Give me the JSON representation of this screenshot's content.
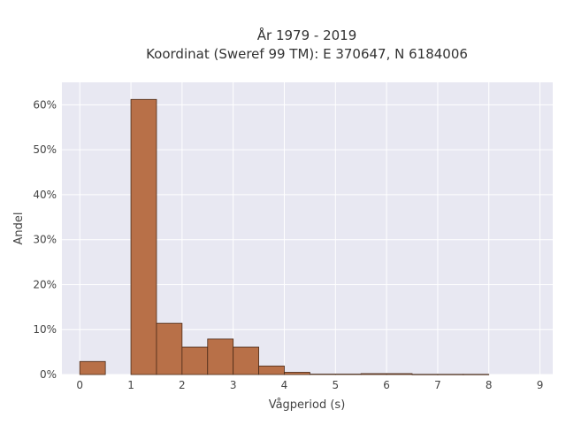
{
  "chart_data": {
    "type": "bar",
    "title": "År 1979 - 2019",
    "subtitle": "Koordinat (Sweref 99 TM): E 370647, N 6184006",
    "xlabel": "Vågperiod (s)",
    "ylabel": "Andel",
    "bin_width": 0.5,
    "bins": [
      {
        "x0": 0.0,
        "x1": 0.5,
        "value": 2.9
      },
      {
        "x0": 0.5,
        "x1": 1.0,
        "value": 0.0
      },
      {
        "x0": 1.0,
        "x1": 1.5,
        "value": 61.2
      },
      {
        "x0": 1.5,
        "x1": 2.0,
        "value": 11.4
      },
      {
        "x0": 2.0,
        "x1": 2.5,
        "value": 6.1
      },
      {
        "x0": 2.5,
        "x1": 3.0,
        "value": 7.9
      },
      {
        "x0": 3.0,
        "x1": 3.5,
        "value": 6.1
      },
      {
        "x0": 3.5,
        "x1": 4.0,
        "value": 1.9
      },
      {
        "x0": 4.0,
        "x1": 4.5,
        "value": 0.5
      },
      {
        "x0": 4.5,
        "x1": 5.0,
        "value": 0.1
      },
      {
        "x0": 5.0,
        "x1": 5.5,
        "value": 0.1
      },
      {
        "x0": 5.5,
        "x1": 6.0,
        "value": 0.2
      },
      {
        "x0": 6.0,
        "x1": 6.5,
        "value": 0.2
      },
      {
        "x0": 6.5,
        "x1": 7.0,
        "value": 0.05
      },
      {
        "x0": 7.0,
        "x1": 7.5,
        "value": 0.05
      },
      {
        "x0": 7.5,
        "x1": 8.0,
        "value": 0.05
      }
    ],
    "xlim": [
      -0.35,
      9.25
    ],
    "ylim": [
      0,
      65
    ],
    "x_ticks": [
      0,
      1,
      2,
      3,
      4,
      5,
      6,
      7,
      8,
      9
    ],
    "y_ticks": [
      0,
      10,
      20,
      30,
      40,
      50,
      60
    ],
    "y_tick_labels": [
      "0%",
      "10%",
      "20%",
      "30%",
      "40%",
      "50%",
      "60%"
    ],
    "grid": true,
    "colors": {
      "bar_fill": "#b87048",
      "bar_stroke": "#4a2a18",
      "plot_background": "#e8e8f2",
      "grid": "#ffffff"
    }
  }
}
